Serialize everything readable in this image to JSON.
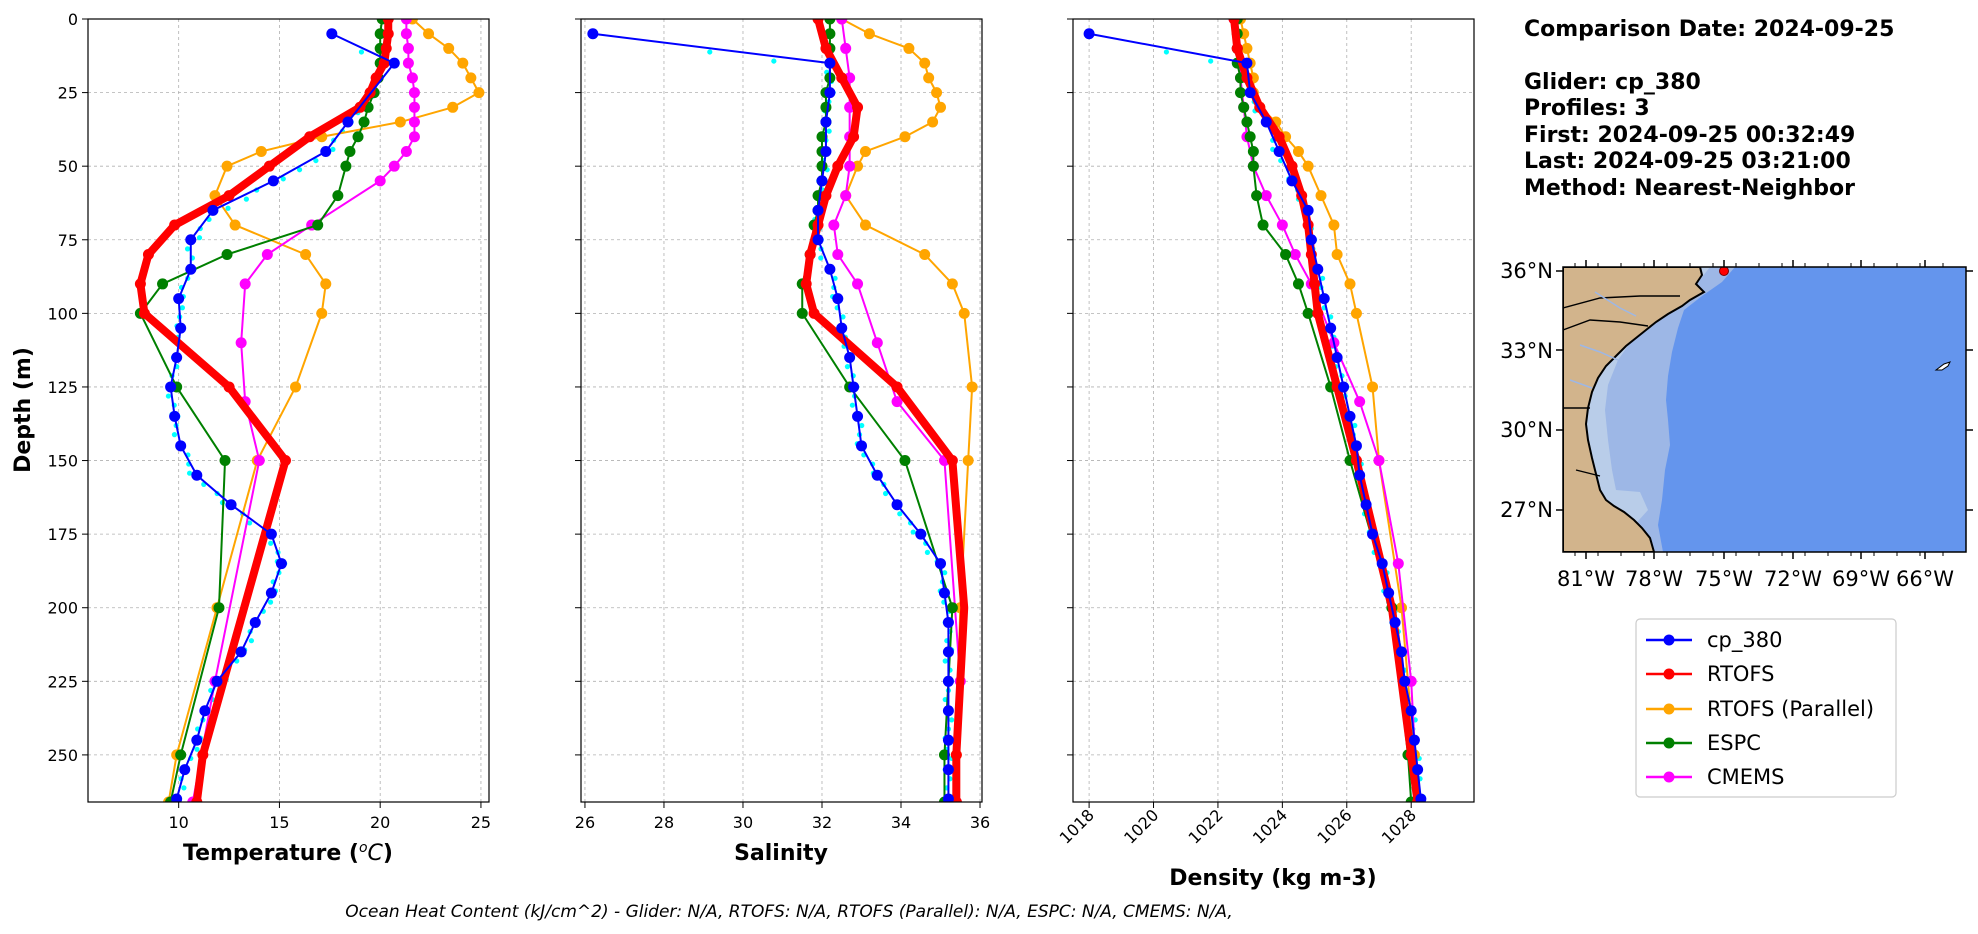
{
  "info": {
    "comparison_date": "Comparison Date: 2024-09-25",
    "glider": "Glider: cp_380",
    "profiles": "Profiles: 3",
    "first": "First: 2024-09-25 00:32:49",
    "last": "Last: 2024-09-25 03:21:00",
    "method": "Method: Nearest-Neighbor"
  },
  "footer": "Ocean Heat Content (kJ/cm^2) - Glider: N/A,  RTOFS: N/A,  RTOFS (Parallel): N/A,  ESPC: N/A,  CMEMS: N/A,",
  "colors": {
    "glider": "#0000ff",
    "rtofs": "#ff0000",
    "rtofs_parallel": "#ffa500",
    "espc": "#008000",
    "cmems": "#ff00ff",
    "raw": "#00ffff",
    "land": "#d2b48c",
    "ocean": "#6495ed",
    "shelf": "#9db7e6",
    "inner_shelf": "#b9cde9"
  },
  "map": {
    "lat_labels": [
      "36°N",
      "33°N",
      "30°N",
      "27°N"
    ],
    "lon_labels": [
      "81°W",
      "78°W",
      "75°W",
      "72°W",
      "69°W",
      "66°W"
    ],
    "glider_marker": "red-dot"
  },
  "legend": [
    "cp_380",
    "RTOFS",
    "RTOFS (Parallel)",
    "ESPC",
    "CMEMS"
  ],
  "chart_data": [
    {
      "type": "line",
      "xlabel": "Temperature (°C)",
      "ylabel": "Depth (m)",
      "xlim": [
        5.5,
        25.4
      ],
      "ylim": [
        266,
        0
      ],
      "xticks": [
        10,
        15,
        20,
        25
      ],
      "yticks": [
        0,
        25,
        50,
        75,
        100,
        125,
        150,
        175,
        200,
        225,
        250
      ],
      "grid": true,
      "series": [
        {
          "name": "cp_380",
          "depth": [
            5,
            15,
            35,
            45,
            55,
            65,
            75,
            85,
            95,
            105,
            115,
            125,
            135,
            145,
            155,
            165,
            175,
            185,
            195,
            205,
            215,
            225,
            235,
            245,
            255,
            265
          ],
          "values": [
            17.6,
            20.7,
            18.4,
            17.3,
            14.7,
            11.7,
            10.6,
            10.6,
            10.0,
            10.1,
            9.9,
            9.6,
            9.8,
            10.1,
            10.9,
            12.6,
            14.6,
            15.1,
            14.6,
            13.8,
            13.1,
            11.9,
            11.3,
            10.9,
            10.3,
            9.9
          ]
        },
        {
          "name": "RTOFS",
          "depth": [
            0,
            5,
            10,
            15,
            20,
            25,
            30,
            40,
            50,
            60,
            70,
            80,
            90,
            100,
            125,
            150,
            250,
            266
          ],
          "values": [
            20.4,
            20.4,
            20.3,
            20.2,
            19.8,
            19.5,
            19.0,
            16.5,
            14.5,
            12.5,
            9.8,
            8.5,
            8.1,
            8.3,
            12.5,
            15.3,
            11.2,
            10.9
          ]
        },
        {
          "name": "RTOFS (Parallel)",
          "depth": [
            0,
            5,
            10,
            15,
            20,
            25,
            30,
            35,
            40,
            45,
            50,
            60,
            70,
            80,
            90,
            100,
            125,
            150,
            200,
            250,
            266
          ],
          "values": [
            21.6,
            22.4,
            23.4,
            24.1,
            24.5,
            24.9,
            23.6,
            21.0,
            17.1,
            14.1,
            12.4,
            11.8,
            12.8,
            16.3,
            17.3,
            17.1,
            15.8,
            13.9,
            11.9,
            9.9,
            9.5
          ]
        },
        {
          "name": "ESPC",
          "depth": [
            0,
            5,
            10,
            15,
            20,
            25,
            30,
            35,
            40,
            45,
            50,
            60,
            70,
            80,
            90,
            100,
            125,
            150,
            200,
            250,
            266
          ],
          "values": [
            20.1,
            20.0,
            20.0,
            20.0,
            19.9,
            19.7,
            19.4,
            19.2,
            18.9,
            18.5,
            18.3,
            17.9,
            16.9,
            12.4,
            9.2,
            8.1,
            9.9,
            12.3,
            12.0,
            10.1,
            9.6
          ]
        },
        {
          "name": "CMEMS",
          "depth": [
            0,
            5,
            10,
            15,
            20,
            25,
            30,
            35,
            40,
            45,
            50,
            55,
            70,
            80,
            90,
            110,
            130,
            150,
            225,
            266
          ],
          "values": [
            21.3,
            21.3,
            21.4,
            21.4,
            21.6,
            21.7,
            21.7,
            21.7,
            21.7,
            21.3,
            20.7,
            20.0,
            16.6,
            14.4,
            13.3,
            13.1,
            13.3,
            14.0,
            11.8,
            10.7
          ]
        }
      ]
    },
    {
      "type": "line",
      "xlabel": "Salinity",
      "ylabel": "",
      "xlim": [
        25.9,
        36.05
      ],
      "ylim": [
        266,
        0
      ],
      "xticks": [
        26,
        28,
        30,
        32,
        34,
        36
      ],
      "yticks": [
        0,
        25,
        50,
        75,
        100,
        125,
        150,
        175,
        200,
        225,
        250
      ],
      "grid": true,
      "series": [
        {
          "name": "cp_380",
          "depth": [
            5,
            15,
            25,
            35,
            45,
            55,
            65,
            75,
            85,
            95,
            105,
            115,
            125,
            135,
            145,
            155,
            165,
            175,
            185,
            195,
            205,
            215,
            225,
            235,
            245,
            255,
            265
          ],
          "values": [
            26.2,
            32.2,
            32.2,
            32.1,
            32.1,
            32.0,
            31.9,
            31.9,
            32.2,
            32.4,
            32.5,
            32.7,
            32.8,
            32.9,
            33.0,
            33.4,
            33.9,
            34.5,
            35.0,
            35.1,
            35.2,
            35.2,
            35.2,
            35.2,
            35.2,
            35.2,
            35.2
          ]
        },
        {
          "name": "RTOFS",
          "depth": [
            0,
            10,
            20,
            30,
            40,
            50,
            60,
            70,
            80,
            90,
            100,
            125,
            150,
            200,
            250,
            266
          ],
          "values": [
            31.9,
            32.1,
            32.5,
            32.9,
            32.8,
            32.4,
            32.1,
            31.9,
            31.7,
            31.6,
            31.8,
            33.9,
            35.3,
            35.6,
            35.4,
            35.4
          ]
        },
        {
          "name": "RTOFS (Parallel)",
          "depth": [
            0,
            5,
            10,
            15,
            20,
            25,
            30,
            35,
            40,
            45,
            50,
            60,
            70,
            80,
            90,
            100,
            125,
            150,
            200,
            250,
            266
          ],
          "values": [
            32.5,
            33.2,
            34.2,
            34.6,
            34.7,
            34.9,
            35.0,
            34.8,
            34.1,
            33.1,
            32.9,
            32.6,
            33.1,
            34.6,
            35.3,
            35.6,
            35.8,
            35.7,
            35.5,
            35.4,
            35.4
          ]
        },
        {
          "name": "ESPC",
          "depth": [
            0,
            5,
            10,
            15,
            20,
            25,
            30,
            35,
            40,
            45,
            50,
            55,
            60,
            65,
            70,
            80,
            90,
            100,
            125,
            150,
            200,
            250,
            266
          ],
          "values": [
            32.2,
            32.2,
            32.2,
            32.2,
            32.2,
            32.1,
            32.1,
            32.1,
            32.0,
            32.0,
            32.0,
            32.0,
            31.9,
            31.9,
            31.8,
            31.7,
            31.5,
            31.5,
            32.7,
            34.1,
            35.3,
            35.1,
            35.1
          ]
        },
        {
          "name": "CMEMS",
          "depth": [
            0,
            10,
            20,
            30,
            40,
            50,
            60,
            70,
            80,
            90,
            110,
            130,
            150,
            225,
            266
          ],
          "values": [
            32.5,
            32.6,
            32.7,
            32.7,
            32.7,
            32.7,
            32.6,
            32.3,
            32.4,
            32.9,
            33.4,
            33.9,
            35.1,
            35.5,
            35.4
          ]
        }
      ]
    },
    {
      "type": "line",
      "xlabel": "Density (kg m-3)",
      "ylabel": "",
      "xlim": [
        1017.5,
        1029.95
      ],
      "ylim": [
        266,
        0
      ],
      "xticks": [
        1018,
        1020,
        1022,
        1024,
        1026,
        1028
      ],
      "yticks": [
        0,
        25,
        50,
        75,
        100,
        125,
        150,
        175,
        200,
        225,
        250
      ],
      "grid": true,
      "series": [
        {
          "name": "cp_380",
          "depth": [
            5,
            15,
            25,
            35,
            45,
            55,
            65,
            75,
            85,
            95,
            105,
            115,
            125,
            135,
            145,
            155,
            165,
            175,
            185,
            195,
            205,
            215,
            225,
            235,
            245,
            255,
            265
          ],
          "values": [
            1018.0,
            1022.9,
            1023.0,
            1023.5,
            1023.9,
            1024.3,
            1024.8,
            1024.9,
            1025.1,
            1025.3,
            1025.5,
            1025.7,
            1025.9,
            1026.1,
            1026.3,
            1026.4,
            1026.6,
            1026.8,
            1027.1,
            1027.3,
            1027.5,
            1027.7,
            1027.8,
            1028.0,
            1028.1,
            1028.2,
            1028.3
          ]
        },
        {
          "name": "RTOFS",
          "depth": [
            0,
            10,
            20,
            30,
            40,
            50,
            60,
            70,
            80,
            90,
            100,
            125,
            150,
            200,
            250,
            266
          ],
          "values": [
            1022.5,
            1022.6,
            1022.9,
            1023.3,
            1023.9,
            1024.3,
            1024.6,
            1024.8,
            1024.9,
            1025.0,
            1025.1,
            1025.7,
            1026.3,
            1027.4,
            1028.0,
            1028.2
          ]
        },
        {
          "name": "RTOFS (Parallel)",
          "depth": [
            0,
            5,
            10,
            15,
            20,
            25,
            30,
            35,
            40,
            45,
            50,
            60,
            70,
            80,
            90,
            100,
            125,
            150,
            200,
            250,
            266
          ],
          "values": [
            1022.7,
            1022.8,
            1022.9,
            1023.0,
            1023.1,
            1023.1,
            1023.3,
            1023.8,
            1024.1,
            1024.5,
            1024.8,
            1025.2,
            1025.6,
            1025.7,
            1026.1,
            1026.3,
            1026.8,
            1027.0,
            1027.7,
            1028.1,
            1028.2
          ]
        },
        {
          "name": "ESPC",
          "depth": [
            0,
            5,
            10,
            15,
            20,
            25,
            30,
            35,
            40,
            45,
            50,
            60,
            70,
            80,
            90,
            100,
            125,
            150,
            200,
            250,
            266
          ],
          "values": [
            1022.6,
            1022.6,
            1022.6,
            1022.6,
            1022.7,
            1022.7,
            1022.8,
            1022.9,
            1023.0,
            1023.1,
            1023.1,
            1023.2,
            1023.4,
            1024.1,
            1024.5,
            1024.8,
            1025.5,
            1026.1,
            1027.4,
            1027.9,
            1028.0
          ]
        },
        {
          "name": "CMEMS",
          "depth": [
            0,
            10,
            20,
            30,
            40,
            50,
            60,
            70,
            80,
            90,
            110,
            130,
            150,
            185,
            225,
            266
          ],
          "values": [
            1022.5,
            1022.6,
            1022.7,
            1022.8,
            1022.9,
            1023.1,
            1023.5,
            1024.0,
            1024.4,
            1024.9,
            1025.6,
            1026.4,
            1027.0,
            1027.6,
            1028.0,
            1028.2
          ]
        }
      ]
    }
  ]
}
